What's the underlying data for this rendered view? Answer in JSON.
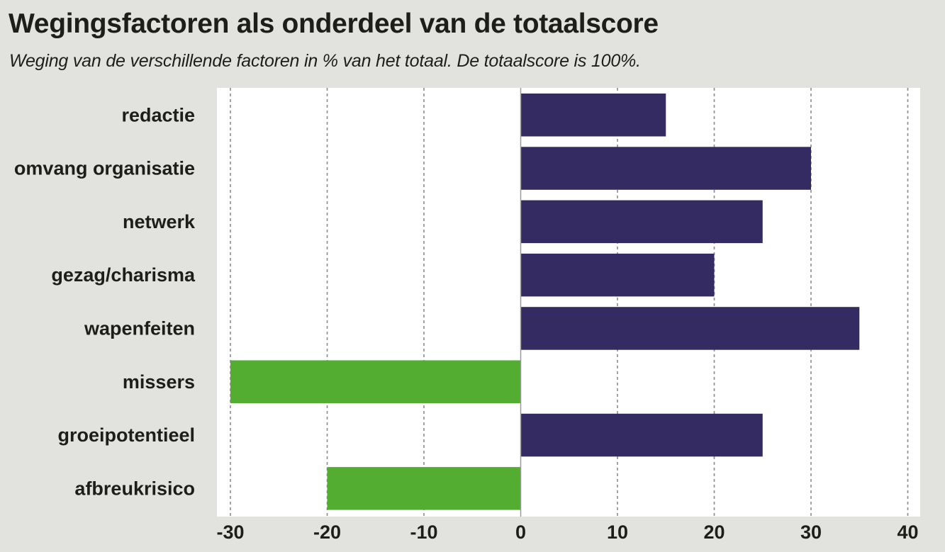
{
  "chart_data": {
    "type": "bar",
    "orientation": "horizontal",
    "title": "Wegingsfactoren als onderdeel van de totaalscore",
    "subtitle": "Weging van de verschillende factoren in % van het totaal. De totaalscore is 100%.",
    "categories": [
      "redactie",
      "omvang organisatie",
      "netwerk",
      "gezag/charisma",
      "wapenfeiten",
      "missers",
      "groeipotentieel",
      "afbreukrisico"
    ],
    "values": [
      15,
      30,
      25,
      20,
      35,
      -30,
      25,
      -20
    ],
    "xlim": [
      -30,
      40
    ],
    "xticks": [
      "-30",
      "-20",
      "-10",
      "0",
      "10",
      "20",
      "30",
      "40"
    ],
    "grid": "vertical dashed",
    "legend": "none",
    "colors": {
      "positive": "#332b61",
      "negative": "#52ad31"
    }
  }
}
